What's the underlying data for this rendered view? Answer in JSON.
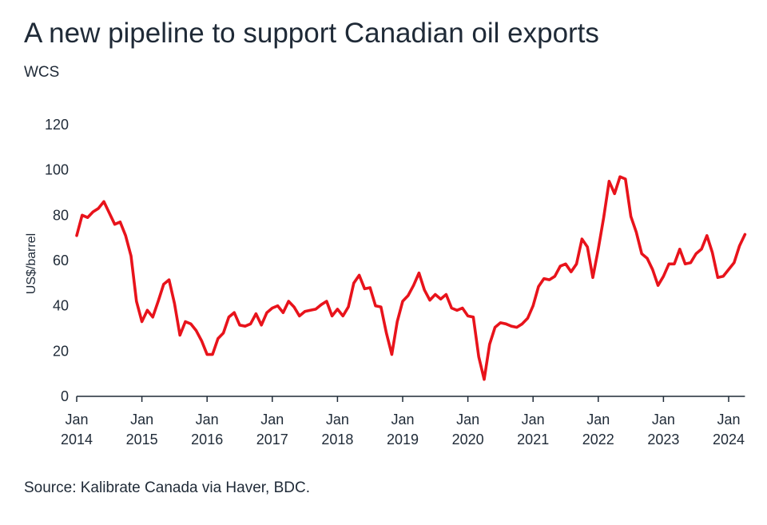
{
  "title": "A new pipeline to support Canadian oil exports",
  "subtitle": "WCS",
  "source": "Source: Kalibrate Canada via Haver, BDC.",
  "colors": {
    "line": "#e8131b",
    "axis": "#1f2a37",
    "text": "#1f2a37"
  },
  "chart_data": {
    "type": "line",
    "title": "A new pipeline to support Canadian oil exports",
    "subtitle": "WCS",
    "ylabel": "US$/barrel",
    "xlabel": "",
    "ylim": [
      0,
      120
    ],
    "yticks": [
      0,
      20,
      40,
      60,
      80,
      100,
      120
    ],
    "xlim": [
      "2014-01",
      "2024-04"
    ],
    "xticks": [
      {
        "top": "Jan",
        "bottom": "2014"
      },
      {
        "top": "Jan",
        "bottom": "2015"
      },
      {
        "top": "Jan",
        "bottom": "2016"
      },
      {
        "top": "Jan",
        "bottom": "2017"
      },
      {
        "top": "Jan",
        "bottom": "2018"
      },
      {
        "top": "Jan",
        "bottom": "2019"
      },
      {
        "top": "Jan",
        "bottom": "2020"
      },
      {
        "top": "Jan",
        "bottom": "2021"
      },
      {
        "top": "Jan",
        "bottom": "2022"
      },
      {
        "top": "Jan",
        "bottom": "2023"
      },
      {
        "top": "Jan",
        "bottom": "2024"
      }
    ],
    "grid": false,
    "series": [
      {
        "name": "",
        "x": [
          "2014-01",
          "2014-02",
          "2014-03",
          "2014-04",
          "2014-05",
          "2014-06",
          "2014-07",
          "2014-08",
          "2014-09",
          "2014-10",
          "2014-11",
          "2014-12",
          "2015-01",
          "2015-02",
          "2015-03",
          "2015-04",
          "2015-05",
          "2015-06",
          "2015-07",
          "2015-08",
          "2015-09",
          "2015-10",
          "2015-11",
          "2015-12",
          "2016-01",
          "2016-02",
          "2016-03",
          "2016-04",
          "2016-05",
          "2016-06",
          "2016-07",
          "2016-08",
          "2016-09",
          "2016-10",
          "2016-11",
          "2016-12",
          "2017-01",
          "2017-02",
          "2017-03",
          "2017-04",
          "2017-05",
          "2017-06",
          "2017-07",
          "2017-08",
          "2017-09",
          "2017-10",
          "2017-11",
          "2017-12",
          "2018-01",
          "2018-02",
          "2018-03",
          "2018-04",
          "2018-05",
          "2018-06",
          "2018-07",
          "2018-08",
          "2018-09",
          "2018-10",
          "2018-11",
          "2018-12",
          "2019-01",
          "2019-02",
          "2019-03",
          "2019-04",
          "2019-05",
          "2019-06",
          "2019-07",
          "2019-08",
          "2019-09",
          "2019-10",
          "2019-11",
          "2019-12",
          "2020-01",
          "2020-02",
          "2020-03",
          "2020-04",
          "2020-05",
          "2020-06",
          "2020-07",
          "2020-08",
          "2020-09",
          "2020-10",
          "2020-11",
          "2020-12",
          "2021-01",
          "2021-02",
          "2021-03",
          "2021-04",
          "2021-05",
          "2021-06",
          "2021-07",
          "2021-08",
          "2021-09",
          "2021-10",
          "2021-11",
          "2021-12",
          "2022-01",
          "2022-02",
          "2022-03",
          "2022-04",
          "2022-05",
          "2022-06",
          "2022-07",
          "2022-08",
          "2022-09",
          "2022-10",
          "2022-11",
          "2022-12",
          "2023-01",
          "2023-02",
          "2023-03",
          "2023-04",
          "2023-05",
          "2023-06",
          "2023-07",
          "2023-08",
          "2023-09",
          "2023-10",
          "2023-11",
          "2023-12",
          "2024-01",
          "2024-02",
          "2024-03",
          "2024-04"
        ],
        "values": [
          71,
          80,
          79,
          81.5,
          83,
          86,
          81,
          76,
          77,
          71,
          62,
          42,
          33,
          38,
          35,
          42,
          49.5,
          51.5,
          41,
          27,
          33,
          32,
          29,
          24.5,
          18.5,
          18.5,
          25.5,
          28,
          35,
          37,
          31.5,
          31,
          32,
          36.5,
          31.5,
          37,
          39,
          40,
          37,
          42,
          39.5,
          35.5,
          37.5,
          38,
          38.5,
          40.5,
          42,
          35.5,
          38.5,
          35.5,
          39.5,
          50,
          53.5,
          47.5,
          48,
          40,
          39.5,
          28,
          18.5,
          33,
          42,
          44.5,
          49,
          54.5,
          47,
          42.5,
          45,
          43,
          45,
          39,
          38,
          39,
          35.5,
          35,
          17.5,
          7.5,
          23,
          30.5,
          32.5,
          32,
          31,
          30.5,
          32,
          34.5,
          40,
          48.5,
          52,
          51.5,
          53,
          57.5,
          58.5,
          55,
          58.5,
          69.5,
          66,
          52.5,
          65,
          79,
          95,
          89.5,
          97,
          96,
          79.5,
          72.5,
          63,
          61,
          56,
          49,
          53,
          58.5,
          58.5,
          65,
          58.5,
          59,
          63,
          65,
          71,
          63.5,
          52.5,
          53,
          56,
          59,
          66.5,
          71.5
        ]
      }
    ]
  }
}
